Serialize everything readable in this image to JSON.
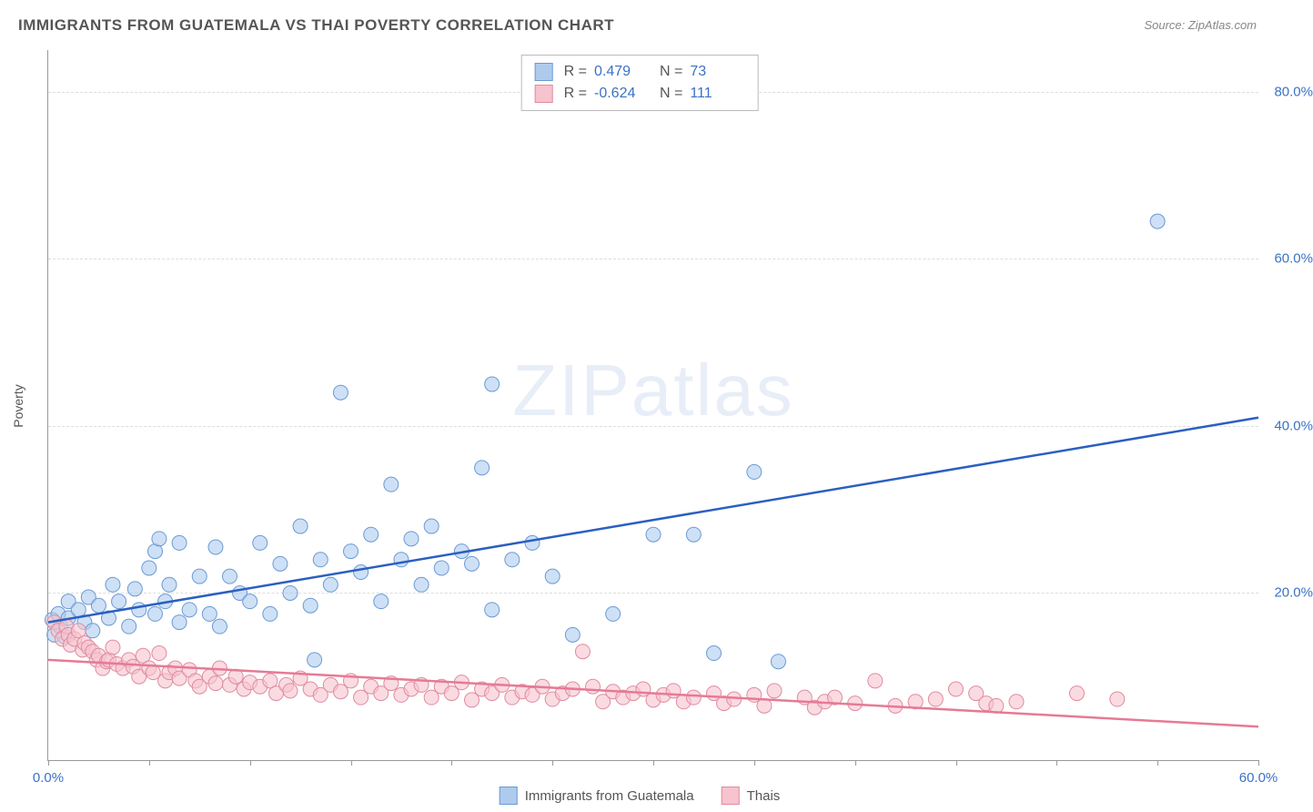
{
  "title": "IMMIGRANTS FROM GUATEMALA VS THAI POVERTY CORRELATION CHART",
  "source": "Source: ZipAtlas.com",
  "watermark": "ZIPatlas",
  "y_axis_label": "Poverty",
  "chart": {
    "type": "scatter",
    "background_color": "#ffffff",
    "grid_color": "#dddddd",
    "axis_color": "#999999",
    "tick_label_color": "#3b72c4",
    "xlim": [
      0,
      60
    ],
    "ylim": [
      0,
      85
    ],
    "x_ticks": [
      0,
      5,
      10,
      15,
      20,
      25,
      30,
      35,
      40,
      45,
      50,
      55,
      60
    ],
    "x_tick_labels": {
      "0": "0.0%",
      "60": "60.0%"
    },
    "y_ticks": [
      20,
      40,
      60,
      80
    ],
    "y_tick_labels": {
      "20": "20.0%",
      "40": "40.0%",
      "60": "60.0%",
      "80": "80.0%"
    },
    "marker_radius": 8,
    "series": [
      {
        "name": "Immigrants from Guatemala",
        "color_fill": "#aecbee",
        "color_stroke": "#6b9ad4",
        "trend_color": "#2b5fc1",
        "trend_width": 2.5,
        "R": "0.479",
        "N": "73",
        "trend": {
          "x1": 0,
          "y1": 16.5,
          "x2": 60,
          "y2": 41
        },
        "points": [
          [
            0.2,
            16.8
          ],
          [
            0.3,
            15
          ],
          [
            0.5,
            17.5
          ],
          [
            0.6,
            16
          ],
          [
            0.8,
            14.8
          ],
          [
            1,
            17
          ],
          [
            1,
            19
          ],
          [
            1.5,
            18
          ],
          [
            1.8,
            16.5
          ],
          [
            2,
            19.5
          ],
          [
            2.2,
            15.5
          ],
          [
            2.5,
            18.5
          ],
          [
            3,
            17
          ],
          [
            3.2,
            21
          ],
          [
            3.5,
            19
          ],
          [
            4,
            16
          ],
          [
            4.3,
            20.5
          ],
          [
            4.5,
            18
          ],
          [
            5,
            23
          ],
          [
            5.3,
            17.5
          ],
          [
            5.3,
            25
          ],
          [
            5.5,
            26.5
          ],
          [
            5.8,
            19
          ],
          [
            6,
            21
          ],
          [
            6.5,
            26
          ],
          [
            6.5,
            16.5
          ],
          [
            7,
            18
          ],
          [
            7.5,
            22
          ],
          [
            8,
            17.5
          ],
          [
            8.3,
            25.5
          ],
          [
            8.5,
            16
          ],
          [
            9,
            22
          ],
          [
            9.5,
            20
          ],
          [
            10,
            19
          ],
          [
            10.5,
            26
          ],
          [
            11,
            17.5
          ],
          [
            11.5,
            23.5
          ],
          [
            12,
            20
          ],
          [
            12.5,
            28
          ],
          [
            13,
            18.5
          ],
          [
            13.2,
            12
          ],
          [
            13.5,
            24
          ],
          [
            14,
            21
          ],
          [
            14.5,
            44
          ],
          [
            15,
            25
          ],
          [
            15.5,
            22.5
          ],
          [
            16,
            27
          ],
          [
            16.5,
            19
          ],
          [
            17,
            33
          ],
          [
            17.5,
            24
          ],
          [
            18,
            26.5
          ],
          [
            18.5,
            21
          ],
          [
            19,
            28
          ],
          [
            19.5,
            23
          ],
          [
            20.5,
            25
          ],
          [
            21,
            23.5
          ],
          [
            21.5,
            35
          ],
          [
            22,
            18
          ],
          [
            22,
            45
          ],
          [
            23,
            24
          ],
          [
            24,
            26
          ],
          [
            25,
            22
          ],
          [
            26,
            15
          ],
          [
            28,
            17.5
          ],
          [
            30,
            27
          ],
          [
            32,
            27
          ],
          [
            33,
            12.8
          ],
          [
            35,
            34.5
          ],
          [
            36.2,
            11.8
          ],
          [
            55,
            64.5
          ]
        ]
      },
      {
        "name": "Thais",
        "color_fill": "#f6c3ce",
        "color_stroke": "#e08ba0",
        "trend_color": "#e67a95",
        "trend_width": 2.5,
        "R": "-0.624",
        "N": "111",
        "trend": {
          "x1": 0,
          "y1": 12,
          "x2": 60,
          "y2": 4
        },
        "points": [
          [
            0.3,
            16.5
          ],
          [
            0.5,
            15.5
          ],
          [
            0.7,
            14.5
          ],
          [
            0.9,
            16
          ],
          [
            1,
            15
          ],
          [
            1.1,
            13.8
          ],
          [
            1.3,
            14.5
          ],
          [
            1.5,
            15.5
          ],
          [
            1.7,
            13.2
          ],
          [
            1.8,
            14
          ],
          [
            2,
            13.5
          ],
          [
            2.2,
            13
          ],
          [
            2.4,
            12
          ],
          [
            2.5,
            12.5
          ],
          [
            2.7,
            11
          ],
          [
            2.9,
            11.8
          ],
          [
            3,
            12
          ],
          [
            3.2,
            13.5
          ],
          [
            3.4,
            11.5
          ],
          [
            3.7,
            11
          ],
          [
            4,
            12
          ],
          [
            4.2,
            11.2
          ],
          [
            4.5,
            10
          ],
          [
            4.7,
            12.5
          ],
          [
            5,
            11
          ],
          [
            5.2,
            10.5
          ],
          [
            5.5,
            12.8
          ],
          [
            5.8,
            9.5
          ],
          [
            6,
            10.5
          ],
          [
            6.3,
            11
          ],
          [
            6.5,
            9.8
          ],
          [
            7,
            10.8
          ],
          [
            7.3,
            9.5
          ],
          [
            7.5,
            8.8
          ],
          [
            8,
            10
          ],
          [
            8.3,
            9.2
          ],
          [
            8.5,
            11
          ],
          [
            9,
            9
          ],
          [
            9.3,
            10
          ],
          [
            9.7,
            8.5
          ],
          [
            10,
            9.3
          ],
          [
            10.5,
            8.8
          ],
          [
            11,
            9.5
          ],
          [
            11.3,
            8
          ],
          [
            11.8,
            9
          ],
          [
            12,
            8.3
          ],
          [
            12.5,
            9.8
          ],
          [
            13,
            8.5
          ],
          [
            13.5,
            7.8
          ],
          [
            14,
            9
          ],
          [
            14.5,
            8.2
          ],
          [
            15,
            9.5
          ],
          [
            15.5,
            7.5
          ],
          [
            16,
            8.8
          ],
          [
            16.5,
            8
          ],
          [
            17,
            9.2
          ],
          [
            17.5,
            7.8
          ],
          [
            18,
            8.5
          ],
          [
            18.5,
            9
          ],
          [
            19,
            7.5
          ],
          [
            19.5,
            8.8
          ],
          [
            20,
            8
          ],
          [
            20.5,
            9.3
          ],
          [
            21,
            7.2
          ],
          [
            21.5,
            8.5
          ],
          [
            22,
            8
          ],
          [
            22.5,
            9
          ],
          [
            23,
            7.5
          ],
          [
            23.5,
            8.2
          ],
          [
            24,
            7.8
          ],
          [
            24.5,
            8.8
          ],
          [
            25,
            7.3
          ],
          [
            25.5,
            8
          ],
          [
            26,
            8.5
          ],
          [
            26.5,
            13
          ],
          [
            27,
            8.8
          ],
          [
            27.5,
            7
          ],
          [
            28,
            8.2
          ],
          [
            28.5,
            7.5
          ],
          [
            29,
            8
          ],
          [
            29.5,
            8.5
          ],
          [
            30,
            7.2
          ],
          [
            30.5,
            7.8
          ],
          [
            31,
            8.3
          ],
          [
            31.5,
            7
          ],
          [
            32,
            7.5
          ],
          [
            33,
            8
          ],
          [
            33.5,
            6.8
          ],
          [
            34,
            7.3
          ],
          [
            35,
            7.8
          ],
          [
            35.5,
            6.5
          ],
          [
            36,
            8.3
          ],
          [
            37.5,
            7.5
          ],
          [
            38,
            6.3
          ],
          [
            38.5,
            7
          ],
          [
            39,
            7.5
          ],
          [
            40,
            6.8
          ],
          [
            41,
            9.5
          ],
          [
            42,
            6.5
          ],
          [
            43,
            7
          ],
          [
            44,
            7.3
          ],
          [
            45,
            8.5
          ],
          [
            46,
            8
          ],
          [
            46.5,
            6.8
          ],
          [
            47,
            6.5
          ],
          [
            48,
            7
          ],
          [
            51,
            8
          ],
          [
            53,
            7.3
          ]
        ]
      }
    ]
  },
  "legend_bottom": [
    {
      "swatch": "blue",
      "label": "Immigrants from Guatemala"
    },
    {
      "swatch": "pink",
      "label": "Thais"
    }
  ]
}
